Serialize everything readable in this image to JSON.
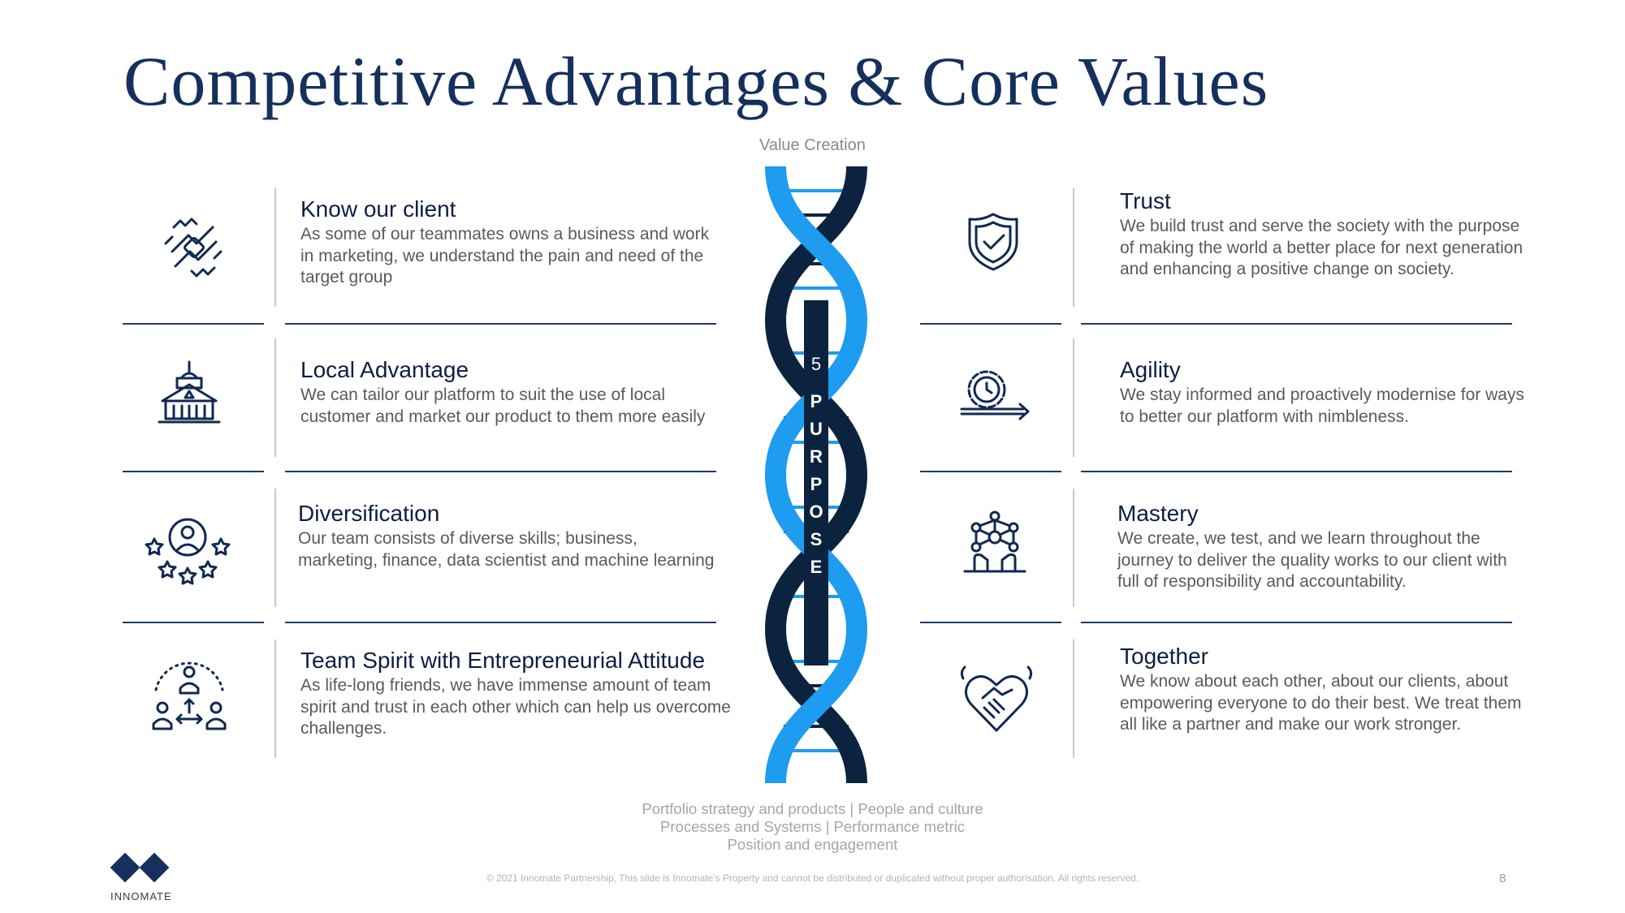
{
  "title": "Competitive Advantages & Core Values",
  "center": {
    "top_label": "Value Creation",
    "number": "5",
    "word_letters": [
      "P",
      "U",
      "R",
      "P",
      "O",
      "S",
      "E"
    ]
  },
  "left_items": [
    {
      "title": "Know our client",
      "desc": "As some of our teammates owns a business and work in marketing, we understand the pain and need of the target group",
      "icon": "handshake-puzzle-icon"
    },
    {
      "title": "Local Advantage",
      "desc": "We can tailor our platform to suit the use of local customer and market our product to them more easily",
      "icon": "building-icon"
    },
    {
      "title": "Diversification",
      "desc": "Our team consists of diverse skills; business, marketing, finance, data scientist and machine learning",
      "icon": "person-stars-icon"
    },
    {
      "title": "Team Spirit with Entrepreneurial Attitude",
      "desc": "As life-long friends, we have immense amount of team spirit and trust in each other which can help us overcome challenges.",
      "icon": "team-network-icon"
    }
  ],
  "right_items": [
    {
      "title": "Trust",
      "desc": "We build trust and serve the society with the purpose of making the world a better place for next generation and enhancing a positive change on society.",
      "icon": "shield-check-icon"
    },
    {
      "title": "Agility",
      "desc": "We stay informed and proactively modernise for ways to better our platform with nimbleness.",
      "icon": "gear-clock-arrow-icon"
    },
    {
      "title": "Mastery",
      "desc": "We create, we test, and we learn throughout the journey to deliver the quality works to our client with full of responsibility and accountability.",
      "icon": "molecule-hands-icon"
    },
    {
      "title": "Together",
      "desc": "We know about each other, about our clients, about empowering everyone to do their best. We treat them all like a partner and make our work stronger.",
      "icon": "heart-handshake-icon"
    }
  ],
  "bottom_lines": [
    "Portfolio strategy and products | People and culture",
    "Processes and Systems | Performance metric",
    "Position and engagement"
  ],
  "footer": {
    "copyright": "© 2021 Innomate Partnership, This slide is Innomate's Property and cannot be distributed or duplicated without proper authorisation. All rights reserved.",
    "page": "8",
    "logo_text": "INNOMATE"
  },
  "colors": {
    "navy": "#0c2340",
    "light_blue": "#1e9cf0",
    "title": "#15305d",
    "rule": "#1d3a6a"
  }
}
